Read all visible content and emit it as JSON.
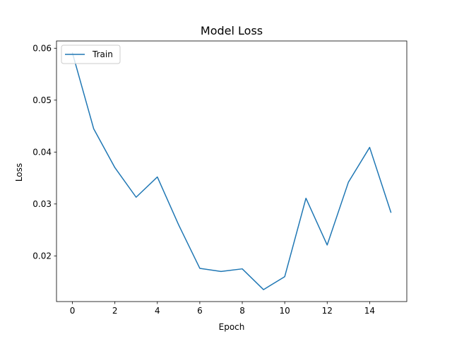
{
  "chart_data": {
    "type": "line",
    "title": "Model Loss",
    "xlabel": "Epoch",
    "ylabel": "Loss",
    "xlim": [
      -0.75,
      15.75
    ],
    "ylim": [
      0.0112,
      0.0614
    ],
    "xticks": [
      0,
      2,
      4,
      6,
      8,
      10,
      12,
      14
    ],
    "yticks": [
      0.02,
      0.03,
      0.04,
      0.05,
      0.06
    ],
    "ytick_labels": [
      "0.02",
      "0.03",
      "0.04",
      "0.05",
      "0.06"
    ],
    "grid": false,
    "legend": {
      "position": "top-left"
    },
    "x": [
      0,
      1,
      2,
      3,
      4,
      5,
      6,
      7,
      8,
      9,
      10,
      11,
      12,
      13,
      14,
      15
    ],
    "series": [
      {
        "name": "Train",
        "color": "#1f77b4",
        "values": [
          0.0591,
          0.0445,
          0.037,
          0.0313,
          0.0352,
          0.026,
          0.0176,
          0.017,
          0.0175,
          0.0135,
          0.016,
          0.0311,
          0.0221,
          0.0342,
          0.0409,
          0.0284
        ]
      }
    ]
  }
}
